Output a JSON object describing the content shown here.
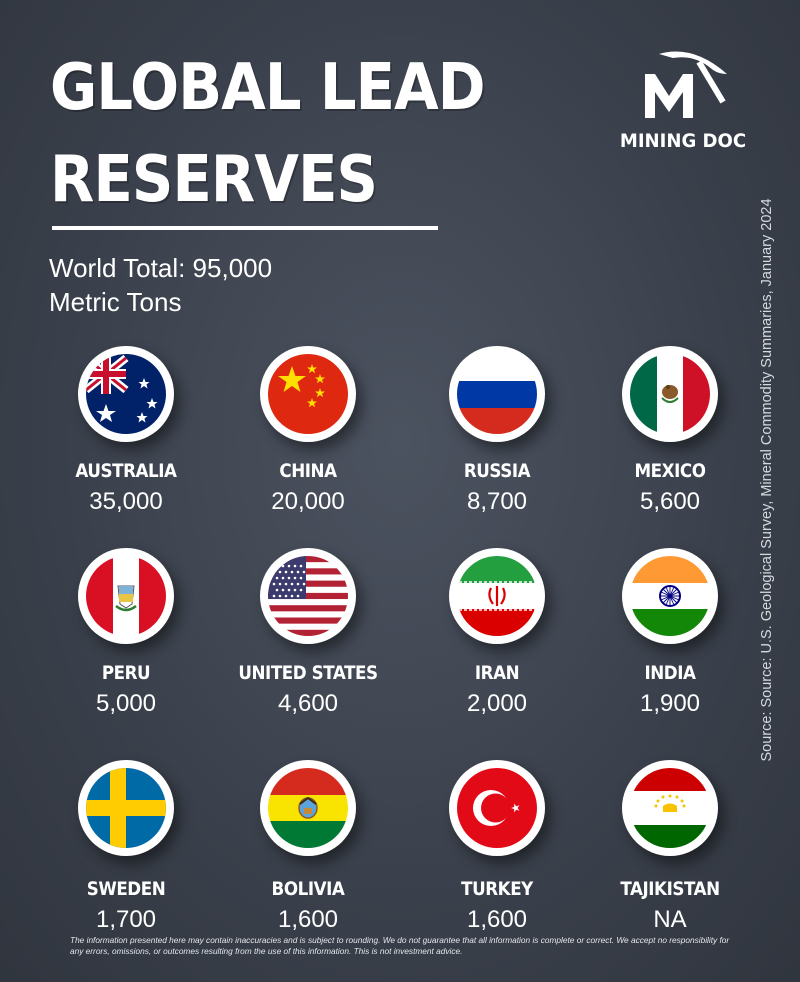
{
  "title_line1": "GLOBAL LEAD",
  "title_line2": "RESERVES",
  "subtitle_line1": "World Total: 95,000",
  "subtitle_line2": "Metric Tons",
  "logo_text": "MINING DOC",
  "source": "Source: Source: U.S. Geological Survey, Mineral Commodity Summaries, January 2024",
  "disclaimer": "The information presented here may contain inaccuracies and is subject to rounding. We do not guarantee that all information is complete or correct. We accept no responsibility for any errors, omissions, or outcomes resulting from the use of this information. This is not investment advice.",
  "colors": {
    "background": "#3d434e",
    "text": "#ffffff",
    "flag_ring": "#ffffff"
  },
  "chart_data": {
    "type": "table",
    "title": "GLOBAL LEAD RESERVES",
    "unit": "Metric Tons",
    "total": "95,000",
    "items": [
      {
        "country": "AUSTRALIA",
        "value_label": "35,000",
        "value": 35000,
        "flag": "australia-flag-icon"
      },
      {
        "country": "CHINA",
        "value_label": "20,000",
        "value": 20000,
        "flag": "china-flag-icon"
      },
      {
        "country": "RUSSIA",
        "value_label": "8,700",
        "value": 8700,
        "flag": "russia-flag-icon"
      },
      {
        "country": "MEXICO",
        "value_label": "5,600",
        "value": 5600,
        "flag": "mexico-flag-icon"
      },
      {
        "country": "PERU",
        "value_label": "5,000",
        "value": 5000,
        "flag": "peru-flag-icon"
      },
      {
        "country": "UNITED STATES",
        "value_label": "4,600",
        "value": 4600,
        "flag": "usa-flag-icon"
      },
      {
        "country": "IRAN",
        "value_label": "2,000",
        "value": 2000,
        "flag": "iran-flag-icon"
      },
      {
        "country": "INDIA",
        "value_label": "1,900",
        "value": 1900,
        "flag": "india-flag-icon"
      },
      {
        "country": "SWEDEN",
        "value_label": "1,700",
        "value": 1700,
        "flag": "sweden-flag-icon"
      },
      {
        "country": "BOLIVIA",
        "value_label": "1,600",
        "value": 1600,
        "flag": "bolivia-flag-icon"
      },
      {
        "country": "TURKEY",
        "value_label": "1,600",
        "value": 1600,
        "flag": "turkey-flag-icon"
      },
      {
        "country": "TAJIKISTAN",
        "value_label": "NA",
        "value": null,
        "flag": "tajikistan-flag-icon"
      }
    ]
  }
}
